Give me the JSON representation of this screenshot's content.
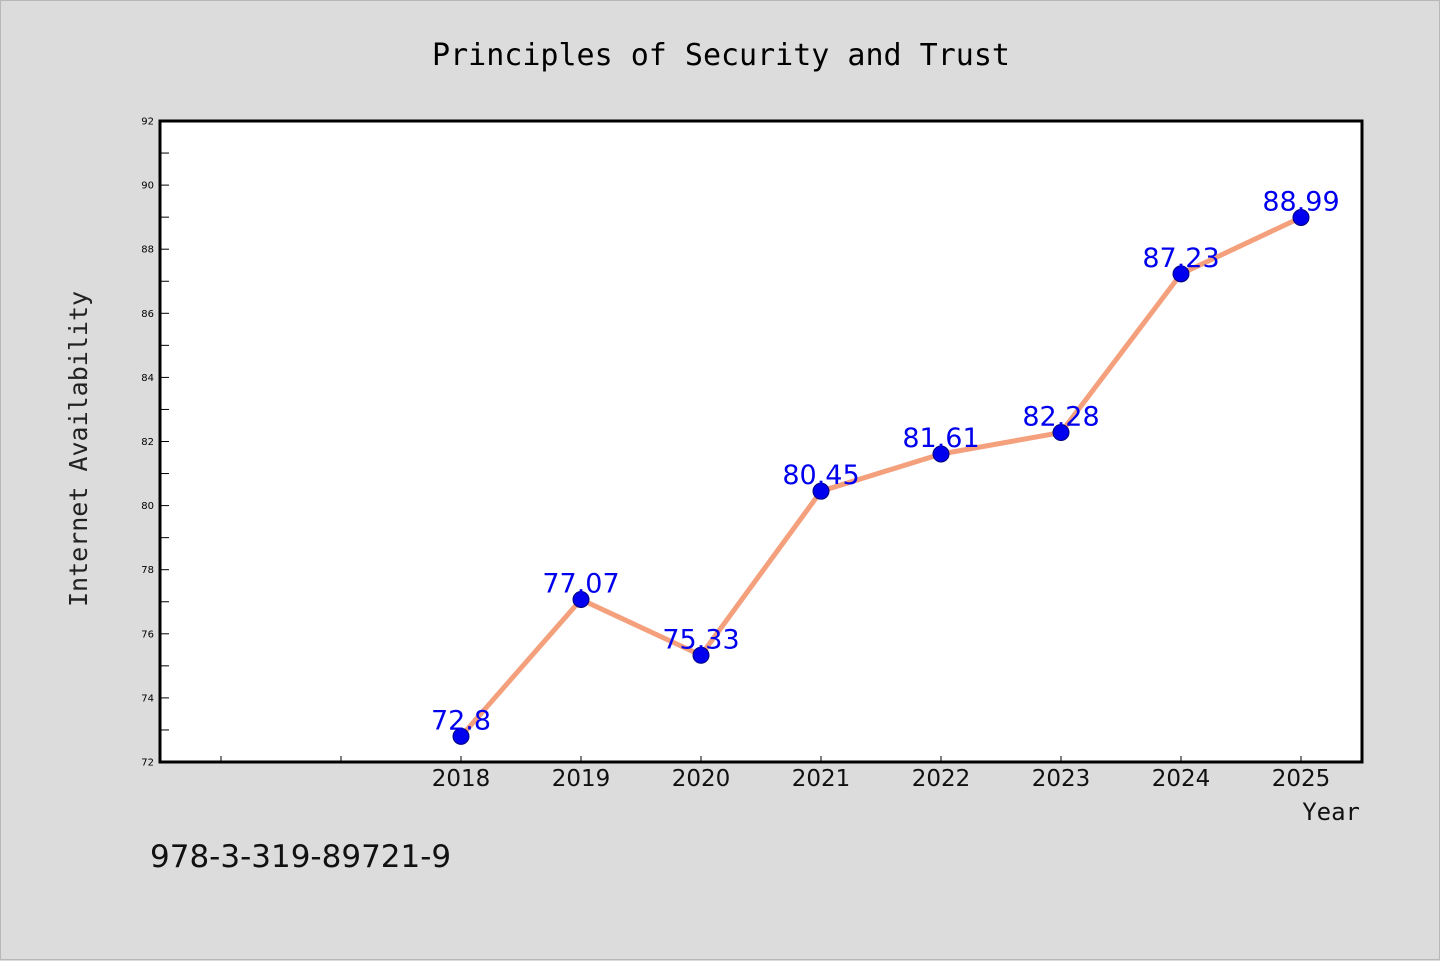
{
  "chart_data": {
    "type": "line",
    "title": "Principles of Security and Trust",
    "xlabel": "Year",
    "ylabel": "Internet Availability",
    "categories": [
      "2018",
      "2019",
      "2020",
      "2021",
      "2022",
      "2023",
      "2024",
      "2025"
    ],
    "series": [
      {
        "values": [
          72.8,
          77.07,
          75.33,
          80.45,
          81.61,
          82.28,
          87.23,
          88.99
        ],
        "data_labels": [
          "72.8",
          "77.07",
          "75.33",
          "80.45",
          "81.61",
          "82.28",
          "87.23",
          "88.99"
        ],
        "line_color": "#f4a07c",
        "marker_color": "#0000ee"
      }
    ],
    "ylim": [
      72,
      92
    ],
    "y_ticks": [
      "72",
      "74",
      "76",
      "78",
      "80",
      "82",
      "84",
      "86",
      "88",
      "90",
      "92"
    ],
    "grid": false,
    "legend": "none",
    "label_color": "#0000ee"
  },
  "footer": {
    "isbn": "978-3-319-89721-9"
  },
  "colors": {
    "background": "#dcdcdc",
    "plot_background": "#ffffff",
    "axis": "#000000"
  }
}
